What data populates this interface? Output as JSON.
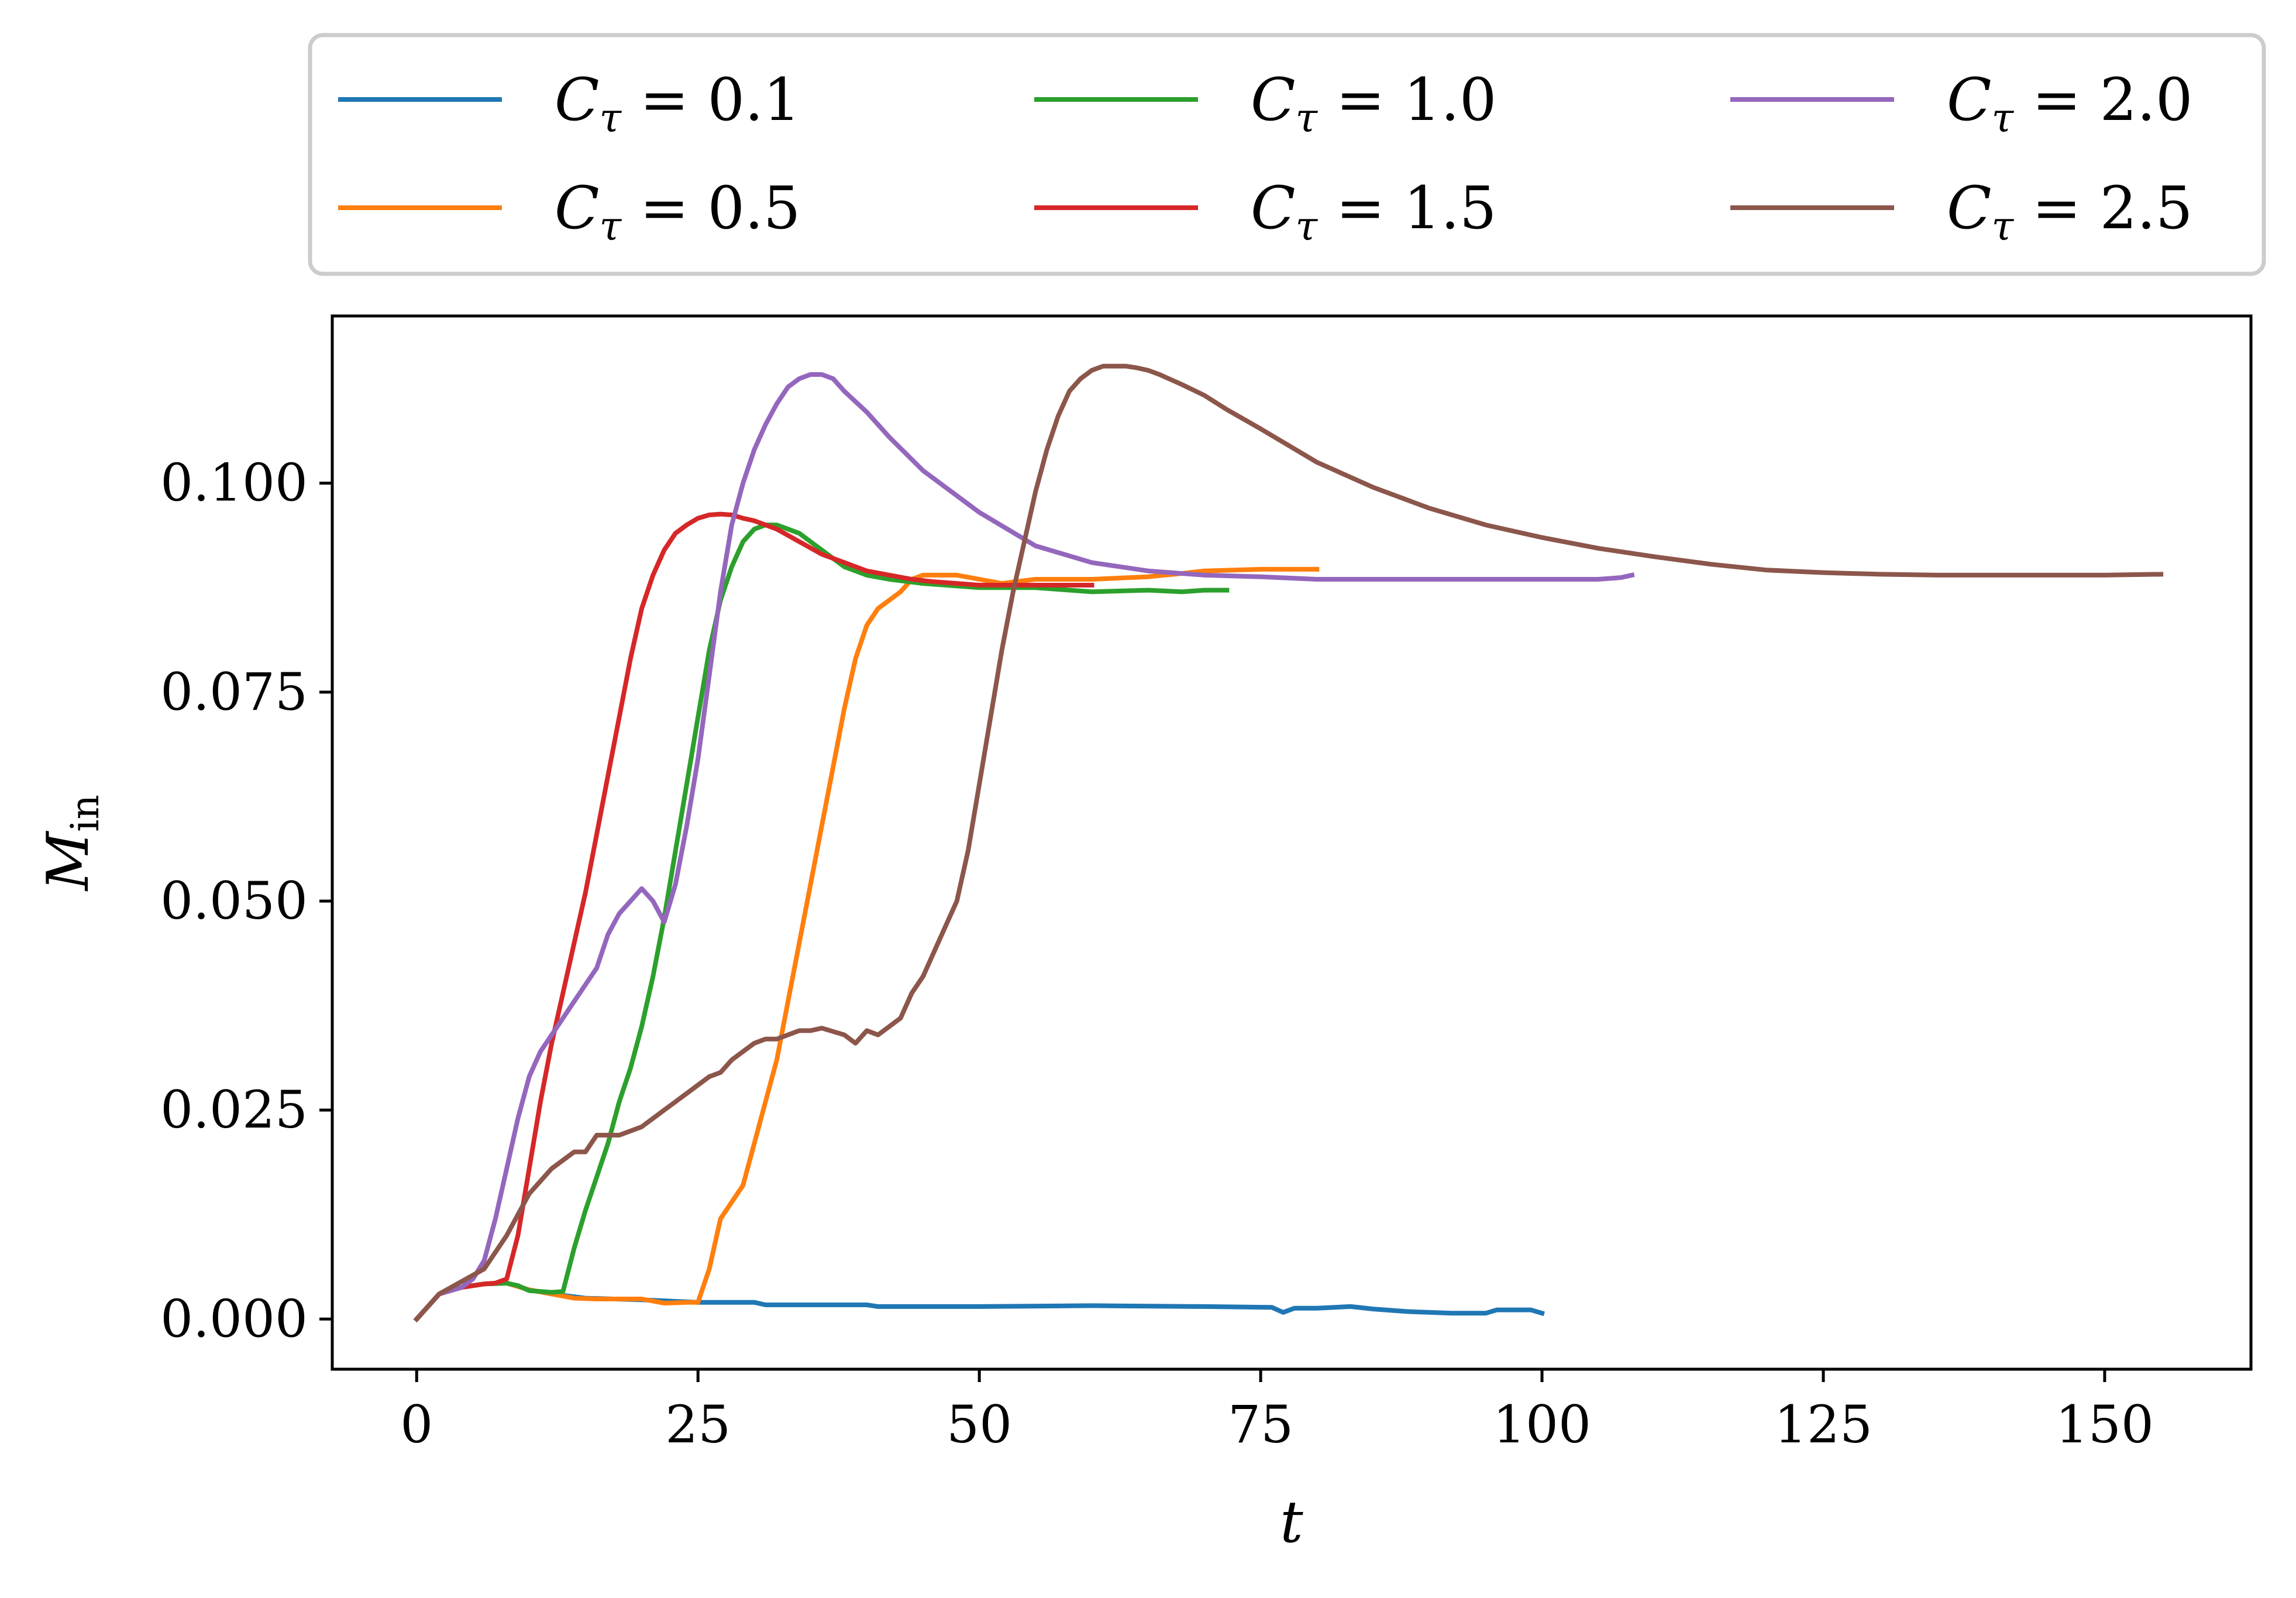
{
  "chart_data": {
    "type": "line",
    "xlabel": "t",
    "ylabel": "M_in",
    "xlim": [
      -7.5,
      163
    ],
    "ylim": [
      -0.006,
      0.12
    ],
    "xticks": [
      0,
      25,
      50,
      75,
      100,
      125,
      150
    ],
    "xtick_labels": [
      "0",
      "25",
      "50",
      "75",
      "100",
      "125",
      "150"
    ],
    "yticks": [
      0.0,
      0.025,
      0.05,
      0.075,
      0.1
    ],
    "ytick_labels": [
      "0.000",
      "0.025",
      "0.050",
      "0.075",
      "0.100"
    ],
    "grid": false,
    "legend_placement": "top, outside, 3 columns",
    "series": [
      {
        "name": "C_τ = 0.1",
        "label_main": "C",
        "label_sub": "τ",
        "label_value": " = 0.1",
        "color": "#1f77b4",
        "x": [
          0,
          2,
          4,
          6,
          8,
          10,
          12,
          15,
          20,
          25,
          30,
          31,
          40,
          41,
          50,
          60,
          70,
          76,
          77,
          78,
          80,
          83,
          85,
          88,
          92,
          95,
          96,
          99,
          100
        ],
        "y": [
          0.0,
          0.003,
          0.0038,
          0.0042,
          0.0043,
          0.0035,
          0.003,
          0.0025,
          0.0023,
          0.002,
          0.002,
          0.0017,
          0.0017,
          0.0015,
          0.0015,
          0.0016,
          0.0015,
          0.0014,
          0.0008,
          0.0013,
          0.0013,
          0.0015,
          0.0012,
          0.0009,
          0.0007,
          0.0007,
          0.0011,
          0.0011,
          0.0007
        ]
      },
      {
        "name": "C_τ = 0.5",
        "label_main": "C",
        "label_sub": "τ",
        "label_value": " = 0.5",
        "color": "#ff7f0e",
        "x": [
          0,
          2,
          4,
          6,
          8,
          10,
          12,
          14,
          16,
          18,
          20,
          22,
          24,
          25,
          26,
          27,
          28,
          29,
          30,
          31,
          32,
          33,
          34,
          35,
          36,
          37,
          38,
          39,
          40,
          41,
          42,
          43,
          44,
          45,
          46,
          48,
          50,
          52,
          55,
          60,
          65,
          68,
          70,
          75,
          80
        ],
        "y": [
          0.0,
          0.003,
          0.0038,
          0.0042,
          0.0043,
          0.0035,
          0.003,
          0.0025,
          0.0024,
          0.0024,
          0.0024,
          0.0019,
          0.002,
          0.002,
          0.006,
          0.012,
          0.014,
          0.016,
          0.021,
          0.026,
          0.031,
          0.038,
          0.045,
          0.052,
          0.059,
          0.066,
          0.073,
          0.079,
          0.083,
          0.085,
          0.086,
          0.087,
          0.0885,
          0.089,
          0.089,
          0.089,
          0.0885,
          0.088,
          0.0885,
          0.0885,
          0.0888,
          0.0892,
          0.0895,
          0.0897,
          0.0897
        ]
      },
      {
        "name": "C_τ = 1.0",
        "label_main": "C",
        "label_sub": "τ",
        "label_value": " = 1.0",
        "color": "#2ca02c",
        "x": [
          0,
          2,
          4,
          6,
          8,
          9,
          10,
          11,
          12,
          13,
          14,
          15,
          16,
          17,
          18,
          19,
          20,
          21,
          22,
          23,
          24,
          25,
          26,
          27,
          28,
          29,
          30,
          31,
          32,
          33,
          34,
          35,
          36,
          38,
          40,
          42,
          45,
          50,
          55,
          60,
          65,
          68,
          70,
          72
        ],
        "y": [
          0.0,
          0.003,
          0.0038,
          0.0042,
          0.0043,
          0.004,
          0.0034,
          0.0033,
          0.0032,
          0.0033,
          0.0085,
          0.013,
          0.017,
          0.021,
          0.026,
          0.03,
          0.035,
          0.041,
          0.048,
          0.056,
          0.064,
          0.072,
          0.08,
          0.086,
          0.09,
          0.093,
          0.0945,
          0.095,
          0.095,
          0.0945,
          0.094,
          0.093,
          0.092,
          0.09,
          0.089,
          0.0885,
          0.088,
          0.0875,
          0.0875,
          0.087,
          0.0872,
          0.087,
          0.0872,
          0.0872
        ]
      },
      {
        "name": "C_τ = 1.5",
        "label_main": "C",
        "label_sub": "τ",
        "label_value": " = 1.5",
        "color": "#d62728",
        "x": [
          0,
          2,
          4,
          6,
          7,
          8,
          9,
          10,
          11,
          12,
          13,
          14,
          15,
          16,
          17,
          18,
          19,
          20,
          21,
          22,
          23,
          24,
          25,
          26,
          27,
          28,
          29,
          30,
          32,
          34,
          36,
          38,
          40,
          42,
          44,
          46,
          48,
          50,
          52,
          55,
          58,
          60
        ],
        "y": [
          0.0,
          0.003,
          0.0038,
          0.0042,
          0.0043,
          0.0048,
          0.01,
          0.018,
          0.026,
          0.033,
          0.039,
          0.045,
          0.051,
          0.058,
          0.065,
          0.072,
          0.079,
          0.085,
          0.089,
          0.092,
          0.094,
          0.095,
          0.0958,
          0.0962,
          0.0963,
          0.0962,
          0.0958,
          0.0955,
          0.0945,
          0.093,
          0.0915,
          0.0905,
          0.0895,
          0.089,
          0.0885,
          0.0882,
          0.088,
          0.0878,
          0.0878,
          0.0878,
          0.0878,
          0.0878
        ]
      },
      {
        "name": "C_τ = 2.0",
        "label_main": "C",
        "label_sub": "τ",
        "label_value": " = 2.0",
        "color": "#9467bd",
        "x": [
          0,
          2,
          4,
          5,
          6,
          7,
          8,
          9,
          10,
          11,
          12,
          13,
          14,
          15,
          16,
          17,
          18,
          19,
          20,
          21,
          22,
          23,
          24,
          25,
          26,
          27,
          28,
          29,
          30,
          31,
          32,
          33,
          34,
          35,
          36,
          37,
          38,
          40,
          42,
          45,
          48,
          50,
          55,
          60,
          65,
          70,
          75,
          80,
          85,
          90,
          95,
          100,
          105,
          107,
          108
        ],
        "y": [
          0.0,
          0.003,
          0.0038,
          0.0048,
          0.007,
          0.012,
          0.018,
          0.024,
          0.029,
          0.032,
          0.034,
          0.036,
          0.038,
          0.04,
          0.042,
          0.046,
          0.0485,
          0.05,
          0.0515,
          0.05,
          0.0475,
          0.052,
          0.059,
          0.067,
          0.077,
          0.087,
          0.095,
          0.1,
          0.104,
          0.107,
          0.1095,
          0.1115,
          0.1125,
          0.113,
          0.113,
          0.1125,
          0.111,
          0.1085,
          0.1055,
          0.1015,
          0.0985,
          0.0965,
          0.0925,
          0.0905,
          0.0895,
          0.089,
          0.0888,
          0.0885,
          0.0885,
          0.0885,
          0.0885,
          0.0885,
          0.0885,
          0.0887,
          0.089
        ]
      },
      {
        "name": "C_τ = 2.5",
        "label_main": "C",
        "label_sub": "τ",
        "label_value": " = 2.5",
        "color": "#8c564b",
        "x": [
          0,
          2,
          4,
          6,
          8,
          10,
          12,
          14,
          15,
          16,
          17,
          18,
          20,
          22,
          24,
          26,
          27,
          28,
          30,
          31,
          32,
          34,
          35,
          36,
          38,
          39,
          40,
          41,
          42,
          43,
          44,
          45,
          46,
          47,
          48,
          49,
          50,
          51,
          52,
          53,
          54,
          55,
          56,
          57,
          58,
          59,
          60,
          61,
          62,
          63,
          64,
          65,
          66,
          68,
          70,
          72,
          75,
          80,
          85,
          90,
          95,
          100,
          105,
          110,
          115,
          120,
          125,
          130,
          135,
          140,
          145,
          150,
          155
        ],
        "y": [
          0.0,
          0.003,
          0.0045,
          0.006,
          0.01,
          0.015,
          0.018,
          0.02,
          0.02,
          0.022,
          0.022,
          0.022,
          0.023,
          0.025,
          0.027,
          0.029,
          0.0295,
          0.031,
          0.033,
          0.0335,
          0.0335,
          0.0345,
          0.0345,
          0.0348,
          0.034,
          0.033,
          0.0345,
          0.034,
          0.035,
          0.036,
          0.039,
          0.041,
          0.044,
          0.047,
          0.05,
          0.056,
          0.064,
          0.072,
          0.08,
          0.087,
          0.093,
          0.099,
          0.104,
          0.108,
          0.111,
          0.1125,
          0.1135,
          0.114,
          0.114,
          0.114,
          0.1138,
          0.1135,
          0.113,
          0.1118,
          0.1105,
          0.1088,
          0.1065,
          0.1025,
          0.0995,
          0.097,
          0.095,
          0.0935,
          0.0922,
          0.0912,
          0.0903,
          0.0896,
          0.0893,
          0.0891,
          0.089,
          0.089,
          0.089,
          0.089,
          0.0891
        ]
      }
    ]
  }
}
